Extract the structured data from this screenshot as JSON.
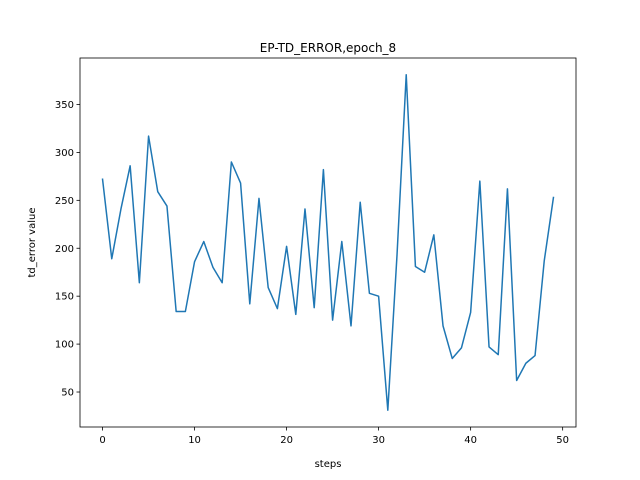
{
  "chart_data": {
    "type": "line",
    "title": "EP-TD_ERROR,epoch_8",
    "xlabel": "steps",
    "ylabel": "td_error value",
    "xlim": [
      -2.45,
      51.45
    ],
    "ylim": [
      13.5,
      398.5
    ],
    "xticks": [
      0,
      10,
      20,
      30,
      40,
      50
    ],
    "yticks": [
      50,
      100,
      150,
      200,
      250,
      300,
      350
    ],
    "grid": false,
    "series": [
      {
        "color": "#1f77b4",
        "x": [
          0,
          1,
          2,
          3,
          4,
          5,
          6,
          7,
          8,
          9,
          10,
          11,
          12,
          13,
          14,
          15,
          16,
          17,
          18,
          19,
          20,
          21,
          22,
          23,
          24,
          25,
          26,
          27,
          28,
          29,
          30,
          31,
          32,
          33,
          34,
          35,
          36,
          37,
          38,
          39,
          40,
          41,
          42,
          43,
          44,
          45,
          46,
          47,
          48,
          49
        ],
        "values": [
          272,
          189,
          241,
          286,
          164,
          317,
          259,
          244,
          134,
          134,
          186,
          207,
          180,
          164,
          290,
          268,
          142,
          252,
          159,
          137,
          202,
          131,
          241,
          138,
          282,
          125,
          207,
          119,
          248,
          153,
          150,
          31,
          193,
          381,
          181,
          175,
          214,
          119,
          85,
          96,
          133,
          270,
          97,
          89,
          262,
          62,
          80,
          88,
          187,
          253
        ]
      }
    ]
  }
}
